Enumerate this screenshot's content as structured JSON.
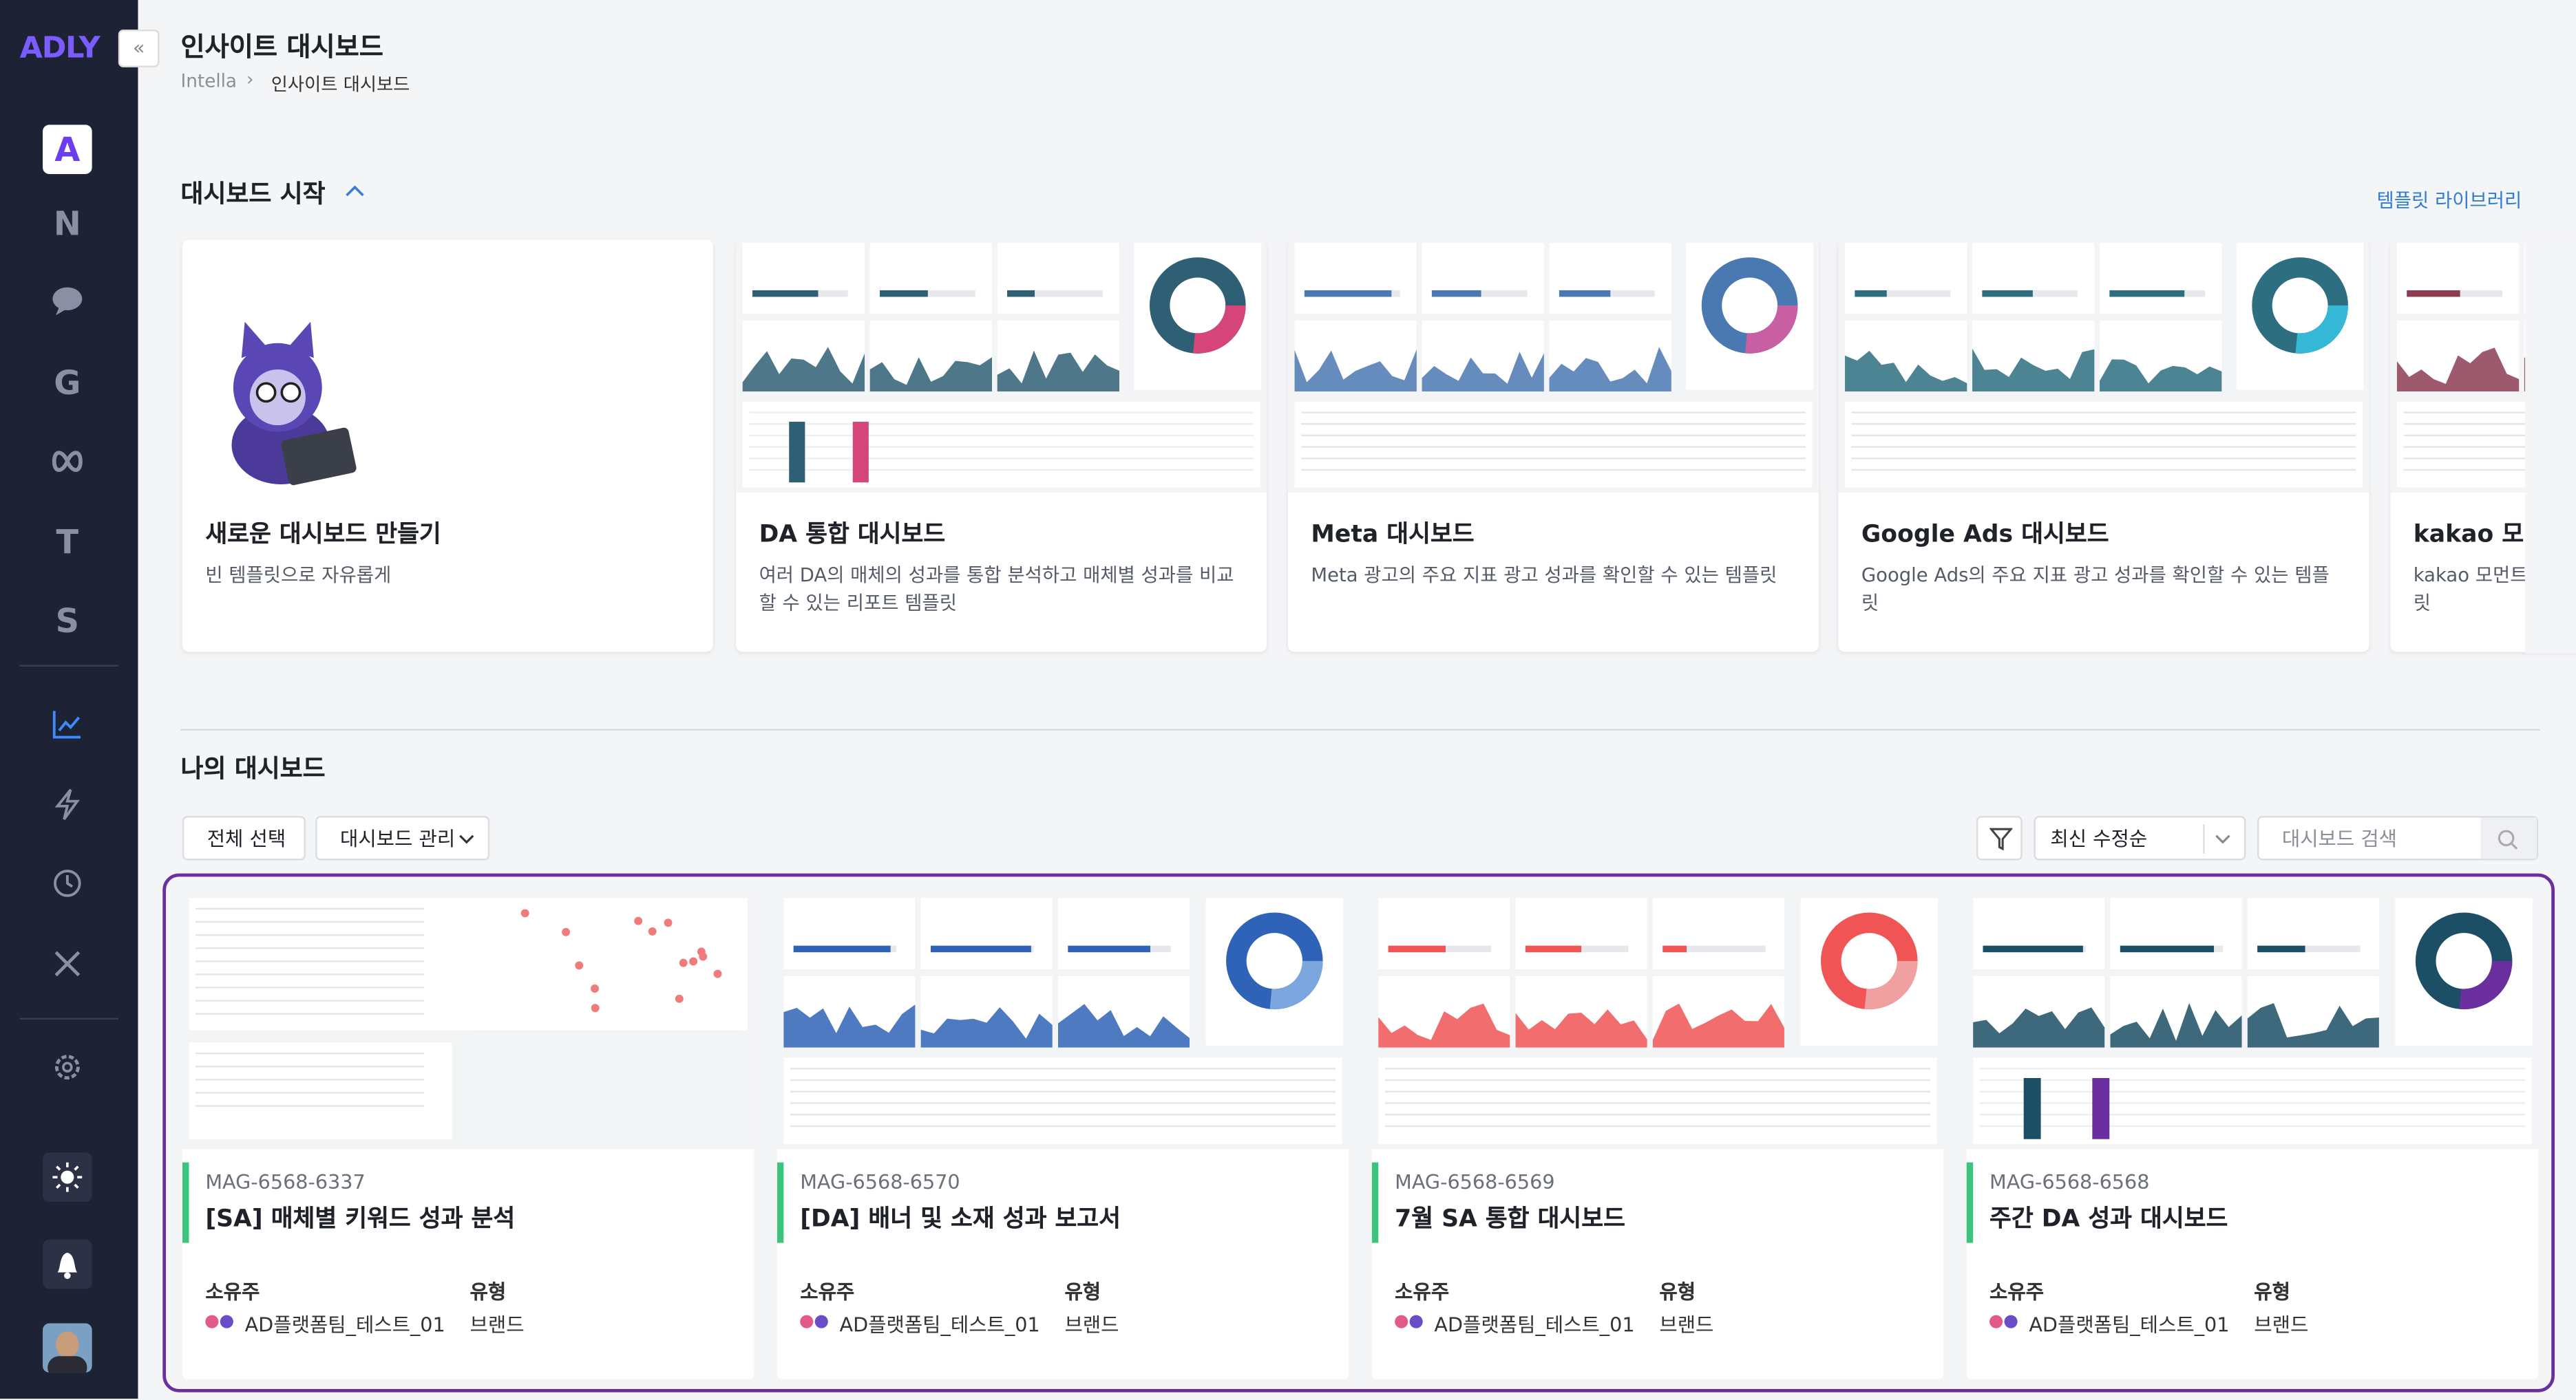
{
  "sidebar": {
    "logo": "ADLY",
    "letters": [
      "A",
      "N",
      "G",
      "T",
      "S"
    ]
  },
  "header": {
    "title": "인사이트 대시보드",
    "breadcrumb": [
      "Intella",
      "인사이트 대시보드"
    ]
  },
  "start_section": {
    "title": "대시보드 시작",
    "link": "템플릿 라이브러리",
    "templates": [
      {
        "title": "새로운 대시보드 만들기",
        "desc": "빈 템플릿으로 자유롭게"
      },
      {
        "title": "DA 통합 대시보드",
        "desc": "여러 DA의 매체의 성과를 통합 분석하고 매체별 성과를 비교할 수 있는 리포트 템플릿"
      },
      {
        "title": "Meta 대시보드",
        "desc": "Meta 광고의 주요 지표 광고 성과를 확인할 수 있는 템플릿"
      },
      {
        "title": "Google Ads 대시보드",
        "desc": "Google Ads의 주요 지표 광고 성과를 확인할 수 있는 템플릿"
      },
      {
        "title": "kakao 모먼트 대시보드",
        "desc": "kakao 모먼트의 주요 지표 광고 성과를 확인할 수 있는 템플릿"
      }
    ]
  },
  "my_section": {
    "title": "나의 대시보드",
    "select_all": "전체 선택",
    "manage": "대시보드 관리",
    "sort": "최신 수정순",
    "search_placeholder": "대시보드 검색",
    "owner_label": "소유주",
    "type_label": "유형",
    "cards": [
      {
        "id": "MAG-6568-6337",
        "title": "[SA] 매체별 키워드 성과 분석",
        "owner": "AD플랫폼팀_테스트_01",
        "type": "브랜드"
      },
      {
        "id": "MAG-6568-6570",
        "title": "[DA] 배너 및 소재 성과 보고서",
        "owner": "AD플랫폼팀_테스트_01",
        "type": "브랜드"
      },
      {
        "id": "MAG-6568-6569",
        "title": "7월 SA 통합 대시보드",
        "owner": "AD플랫폼팀_테스트_01",
        "type": "브랜드"
      },
      {
        "id": "MAG-6568-6568",
        "title": "주간 DA 성과 대시보드",
        "owner": "AD플랫폼팀_테스트_01",
        "type": "브랜드"
      }
    ]
  }
}
